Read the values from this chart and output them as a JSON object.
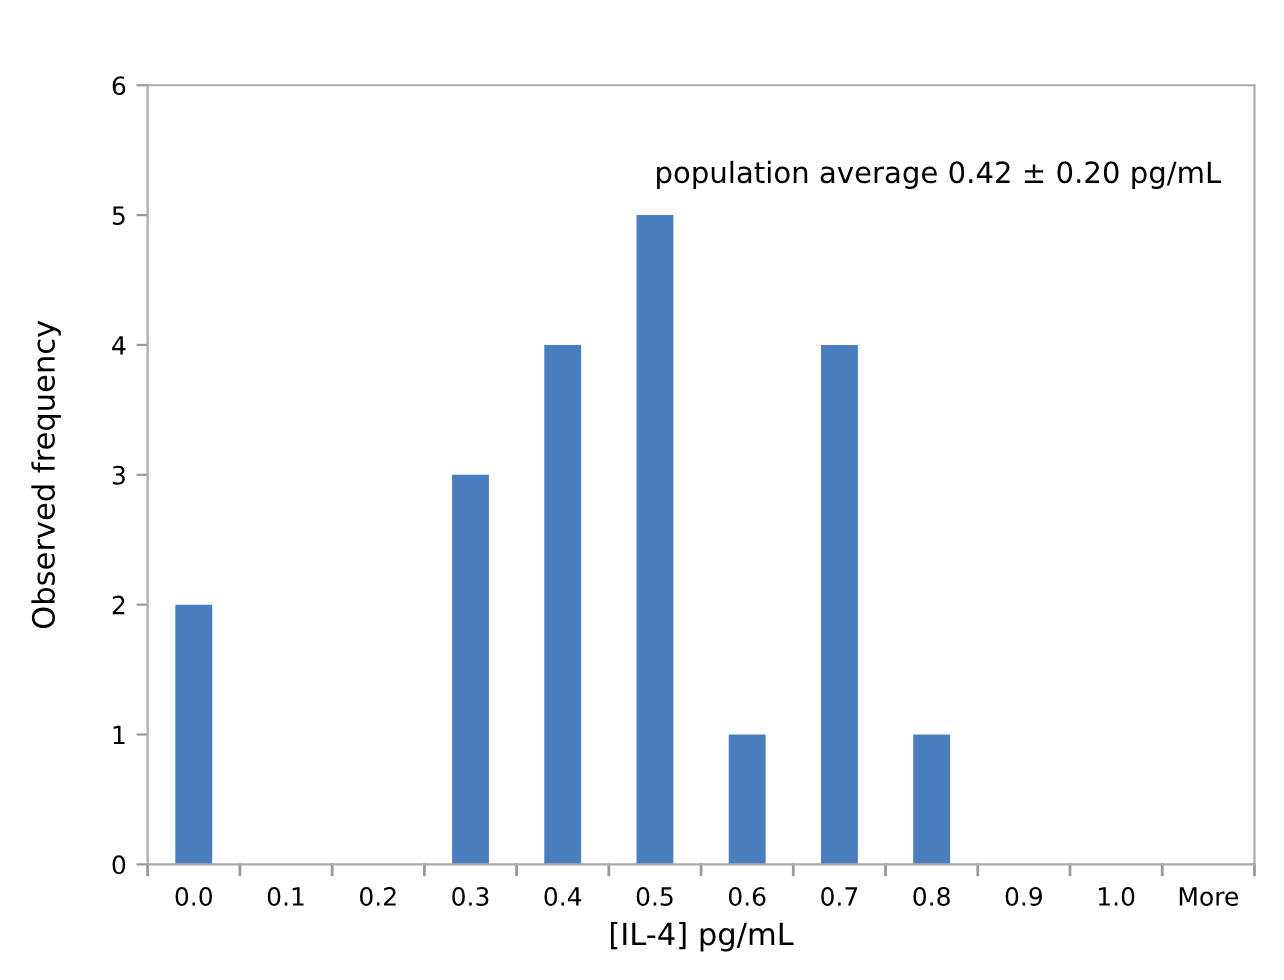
{
  "chart_data": {
    "type": "bar",
    "xlabel": "[IL-4] pg/mL",
    "ylabel": "Observed frequency",
    "categories": [
      "0.0",
      "0.1",
      "0.2",
      "0.3",
      "0.4",
      "0.5",
      "0.6",
      "0.7",
      "0.8",
      "0.9",
      "1.0",
      "More"
    ],
    "values": [
      2,
      0,
      0,
      3,
      4,
      5,
      1,
      4,
      1,
      0,
      0,
      0
    ],
    "color": "#4a7ebf",
    "ylim": [
      0,
      6
    ],
    "yticks": [
      0,
      1,
      2,
      3,
      4,
      5,
      6
    ],
    "grid": false,
    "legend": false,
    "annotations": [
      "population average 0.42 ± 0.20 pg/mL"
    ]
  }
}
